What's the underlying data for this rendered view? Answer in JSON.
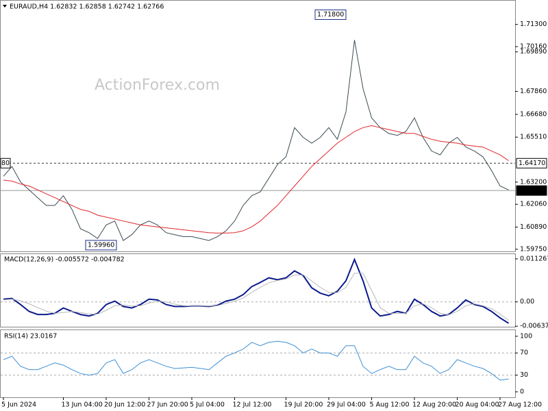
{
  "chart_data": [
    {
      "type": "line",
      "title": "EURAUD,H4  1.62832 1.62858 1.62742 1.62766",
      "watermark": "ActionForex.com",
      "categories": [
        "5 Jun 2024",
        null,
        null,
        null,
        null,
        null,
        null,
        "13 Jun 04:00",
        null,
        null,
        null,
        null,
        "20 Jun 12:00",
        null,
        null,
        null,
        null,
        "27 Jun 20:00",
        null,
        null,
        null,
        null,
        "5 Jul 04:00",
        null,
        null,
        null,
        null,
        "12 Jul 12:00",
        null,
        null,
        null,
        null,
        null,
        "19 Jul 20:00",
        null,
        null,
        null,
        null,
        "29 Jul 04:00",
        null,
        null,
        null,
        null,
        "5 Aug 12:00",
        null,
        null,
        null,
        null,
        "12 Aug 20:00",
        null,
        null,
        null,
        null,
        "20 Aug 04:00",
        null,
        null,
        null,
        null,
        "27 Aug 12:00",
        null
      ],
      "series": [
        {
          "color": "#3a4a52",
          "values": [
            1.635,
            1.64,
            1.632,
            1.628,
            1.624,
            1.62,
            1.62,
            1.625,
            1.618,
            1.608,
            1.606,
            1.603,
            1.61,
            1.612,
            1.602,
            1.605,
            1.61,
            1.612,
            1.61,
            1.606,
            1.605,
            1.604,
            1.604,
            1.603,
            1.602,
            1.604,
            1.607,
            1.612,
            1.62,
            1.625,
            1.627,
            1.634,
            1.641,
            1.645,
            1.66,
            1.655,
            1.652,
            1.655,
            1.66,
            1.654,
            1.668,
            1.705,
            1.68,
            1.665,
            1.66,
            1.657,
            1.656,
            1.658,
            1.665,
            1.655,
            1.648,
            1.646,
            1.652,
            1.655,
            1.65,
            1.648,
            1.645,
            1.638,
            1.63,
            1.628
          ]
        },
        {
          "color": "#e0262b",
          "values": [
            1.633,
            1.6325,
            1.631,
            1.63,
            1.628,
            1.626,
            1.624,
            1.622,
            1.62,
            1.618,
            1.617,
            1.615,
            1.614,
            1.613,
            1.612,
            1.611,
            1.61,
            1.6095,
            1.609,
            1.6085,
            1.608,
            1.6075,
            1.607,
            1.6065,
            1.606,
            1.6058,
            1.6058,
            1.606,
            1.607,
            1.609,
            1.612,
            1.616,
            1.62,
            1.625,
            1.63,
            1.635,
            1.64,
            1.644,
            1.648,
            1.652,
            1.655,
            1.658,
            1.66,
            1.661,
            1.66,
            1.659,
            1.658,
            1.657,
            1.657,
            1.6555,
            1.654,
            1.653,
            1.6525,
            1.652,
            1.651,
            1.6505,
            1.65,
            1.648,
            1.646,
            1.643
          ]
        }
      ],
      "ylim": [
        1.5964,
        1.7252
      ],
      "yticks": [
        {
          "value": 1.713,
          "label": "1.71300"
        },
        {
          "value": 1.7016,
          "label": "1.70160"
        },
        {
          "value": 1.6989,
          "label": "1.69890"
        },
        {
          "value": 1.6786,
          "label": "1.67860"
        },
        {
          "value": 1.6668,
          "label": "1.66680"
        },
        {
          "value": 1.6551,
          "label": "1.65510"
        },
        {
          "value": 1.632,
          "label": "1.63200"
        },
        {
          "value": 1.6206,
          "label": "1.62060"
        },
        {
          "value": 1.6089,
          "label": "1.60890"
        },
        {
          "value": 1.5975,
          "label": "1.59750"
        }
      ],
      "reference_lines": [
        {
          "value": 1.6417,
          "label": "1.64170",
          "style": "dashed"
        },
        {
          "value": 1.62766,
          "label": "1.62766",
          "style": "current"
        }
      ],
      "left_label": "80",
      "annotations": [
        {
          "value": 1.718,
          "label": "1.71800"
        },
        {
          "value": 1.5996,
          "label": "1.59960"
        }
      ]
    },
    {
      "type": "line",
      "title": "MACD(12,26,9) -0.005572 -0.004782",
      "series": [
        {
          "color": "#0a1a8c",
          "values": [
            0.0007,
            0.0009,
            -0.0007,
            -0.0025,
            -0.0033,
            -0.0033,
            -0.003,
            -0.0016,
            -0.0025,
            -0.0033,
            -0.0037,
            -0.003,
            -0.0007,
            0.0002,
            -0.0012,
            -0.0016,
            -0.0007,
            0.0007,
            0.0005,
            -0.0007,
            -0.0012,
            -0.0012,
            -0.0011,
            -0.0011,
            -0.0012,
            -0.0009,
            0.0002,
            0.0007,
            0.0019,
            0.004,
            0.0051,
            0.0063,
            0.0058,
            0.0063,
            0.0081,
            0.0069,
            0.0037,
            0.0023,
            0.0016,
            0.0028,
            0.0055,
            0.0111,
            0.0055,
            -0.0016,
            -0.0037,
            -0.0033,
            -0.0025,
            -0.003,
            0.0007,
            -0.0007,
            -0.0025,
            -0.0037,
            -0.0033,
            -0.0016,
            0.0005,
            -0.0007,
            -0.0012,
            -0.0025,
            -0.0042,
            -0.0056
          ]
        },
        {
          "color": "#b8b8b8",
          "values": [
            0.0005,
            0.0007,
            0.0003,
            -0.0005,
            -0.0015,
            -0.0024,
            -0.003,
            -0.0028,
            -0.0025,
            -0.0028,
            -0.0032,
            -0.0032,
            -0.0022,
            -0.001,
            -0.0008,
            -0.0011,
            -0.001,
            -0.0003,
            0.0002,
            0,
            -0.0006,
            -0.001,
            -0.0011,
            -0.0011,
            -0.0011,
            -0.001,
            -0.0004,
            0.0002,
            0.001,
            0.0025,
            0.0038,
            0.005,
            0.0056,
            0.006,
            0.007,
            0.0071,
            0.0055,
            0.0038,
            0.0025,
            0.0024,
            0.0038,
            0.0075,
            0.0075,
            0.003,
            -0.0015,
            -0.003,
            -0.003,
            -0.003,
            -0.001,
            -0.0005,
            -0.0015,
            -0.003,
            -0.0034,
            -0.0025,
            -0.001,
            -0.0005,
            -0.001,
            -0.0018,
            -0.0032,
            -0.0048
          ]
        }
      ],
      "ylim": [
        -0.00651,
        0.0125
      ],
      "yticks": [
        0.011267,
        {
          "value": 0,
          "label": "0.00"
        },
        -0.006374
      ],
      "levels": [
        0
      ]
    },
    {
      "type": "line",
      "title": "RSI(14) 23.0167",
      "series": [
        {
          "color": "#3d8fd6",
          "values": [
            58,
            64,
            46,
            40,
            40,
            46,
            52,
            48,
            40,
            33,
            30,
            33,
            52,
            58,
            33,
            40,
            52,
            58,
            52,
            46,
            42,
            43,
            44,
            42,
            40,
            52,
            64,
            70,
            77,
            89,
            83,
            89,
            91,
            89,
            83,
            70,
            77,
            70,
            70,
            64,
            83,
            83,
            46,
            33,
            40,
            46,
            40,
            40,
            64,
            52,
            46,
            33,
            40,
            58,
            52,
            46,
            42,
            33,
            21,
            23
          ]
        }
      ],
      "ylim": [
        -9.9,
        111
      ],
      "yticks": [
        100,
        70,
        30,
        0
      ],
      "levels": [
        70,
        30
      ]
    }
  ]
}
